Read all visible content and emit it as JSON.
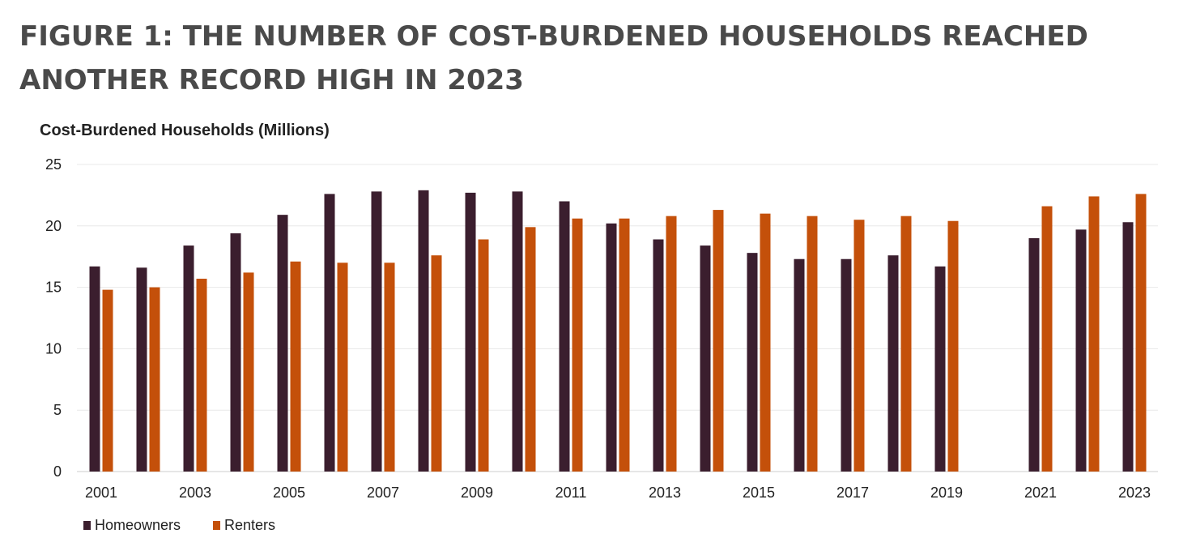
{
  "figure_title": "FIGURE 1: THE NUMBER OF COST-BURDENED HOUSEHOLDS REACHED ANOTHER RECORD HIGH IN 2023",
  "colors": {
    "homeowners": "#3b1e2e",
    "renters": "#c4500a",
    "title": "#4a4a4a",
    "gridline": "#e8e8e8",
    "axis": "#cccccc"
  },
  "chart_data": {
    "type": "bar",
    "title": "",
    "ylabel": "Cost-Burdened Households (Millions)",
    "xlabel": "",
    "ylim": [
      0,
      25
    ],
    "yticks": [
      0,
      5,
      10,
      15,
      20,
      25
    ],
    "grid": true,
    "legend_position": "bottom-left",
    "categories": [
      "2001",
      "2002",
      "2003",
      "2004",
      "2005",
      "2006",
      "2007",
      "2008",
      "2009",
      "2010",
      "2011",
      "2012",
      "2013",
      "2014",
      "2015",
      "2016",
      "2017",
      "2018",
      "2019",
      "2020",
      "2021",
      "2022",
      "2023"
    ],
    "tick_labels": [
      "2001",
      "",
      "2003",
      "",
      "2005",
      "",
      "2007",
      "",
      "2009",
      "",
      "2011",
      "",
      "2013",
      "",
      "2015",
      "",
      "2017",
      "",
      "2019",
      "",
      "2021",
      "",
      "2023"
    ],
    "series": [
      {
        "name": "Homeowners",
        "values": [
          16.7,
          16.6,
          18.4,
          19.4,
          20.9,
          22.6,
          22.8,
          22.9,
          22.7,
          22.8,
          22.0,
          20.2,
          18.9,
          18.4,
          17.8,
          17.3,
          17.3,
          17.6,
          16.7,
          null,
          19.0,
          19.7,
          20.3
        ]
      },
      {
        "name": "Renters",
        "values": [
          14.8,
          15.0,
          15.7,
          16.2,
          17.1,
          17.0,
          17.0,
          17.6,
          18.9,
          19.9,
          20.6,
          20.6,
          20.8,
          21.3,
          21.0,
          20.8,
          20.5,
          20.8,
          20.4,
          null,
          21.6,
          22.4,
          22.6
        ]
      }
    ]
  }
}
